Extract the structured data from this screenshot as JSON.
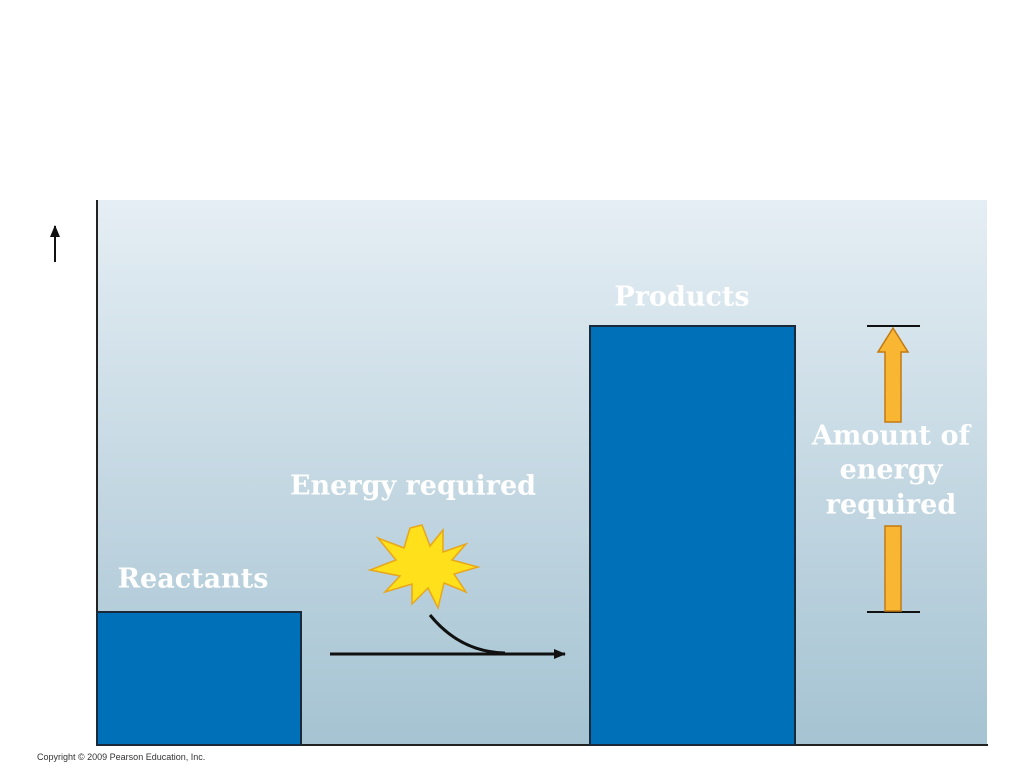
{
  "labels": {
    "products": "Products",
    "reactants": "Reactants",
    "energy_input": "Energy required",
    "amount": [
      "Amount of",
      "energy",
      "required"
    ]
  },
  "footer": {
    "copyright": "Copyright © 2009 Pearson Education, Inc."
  }
}
